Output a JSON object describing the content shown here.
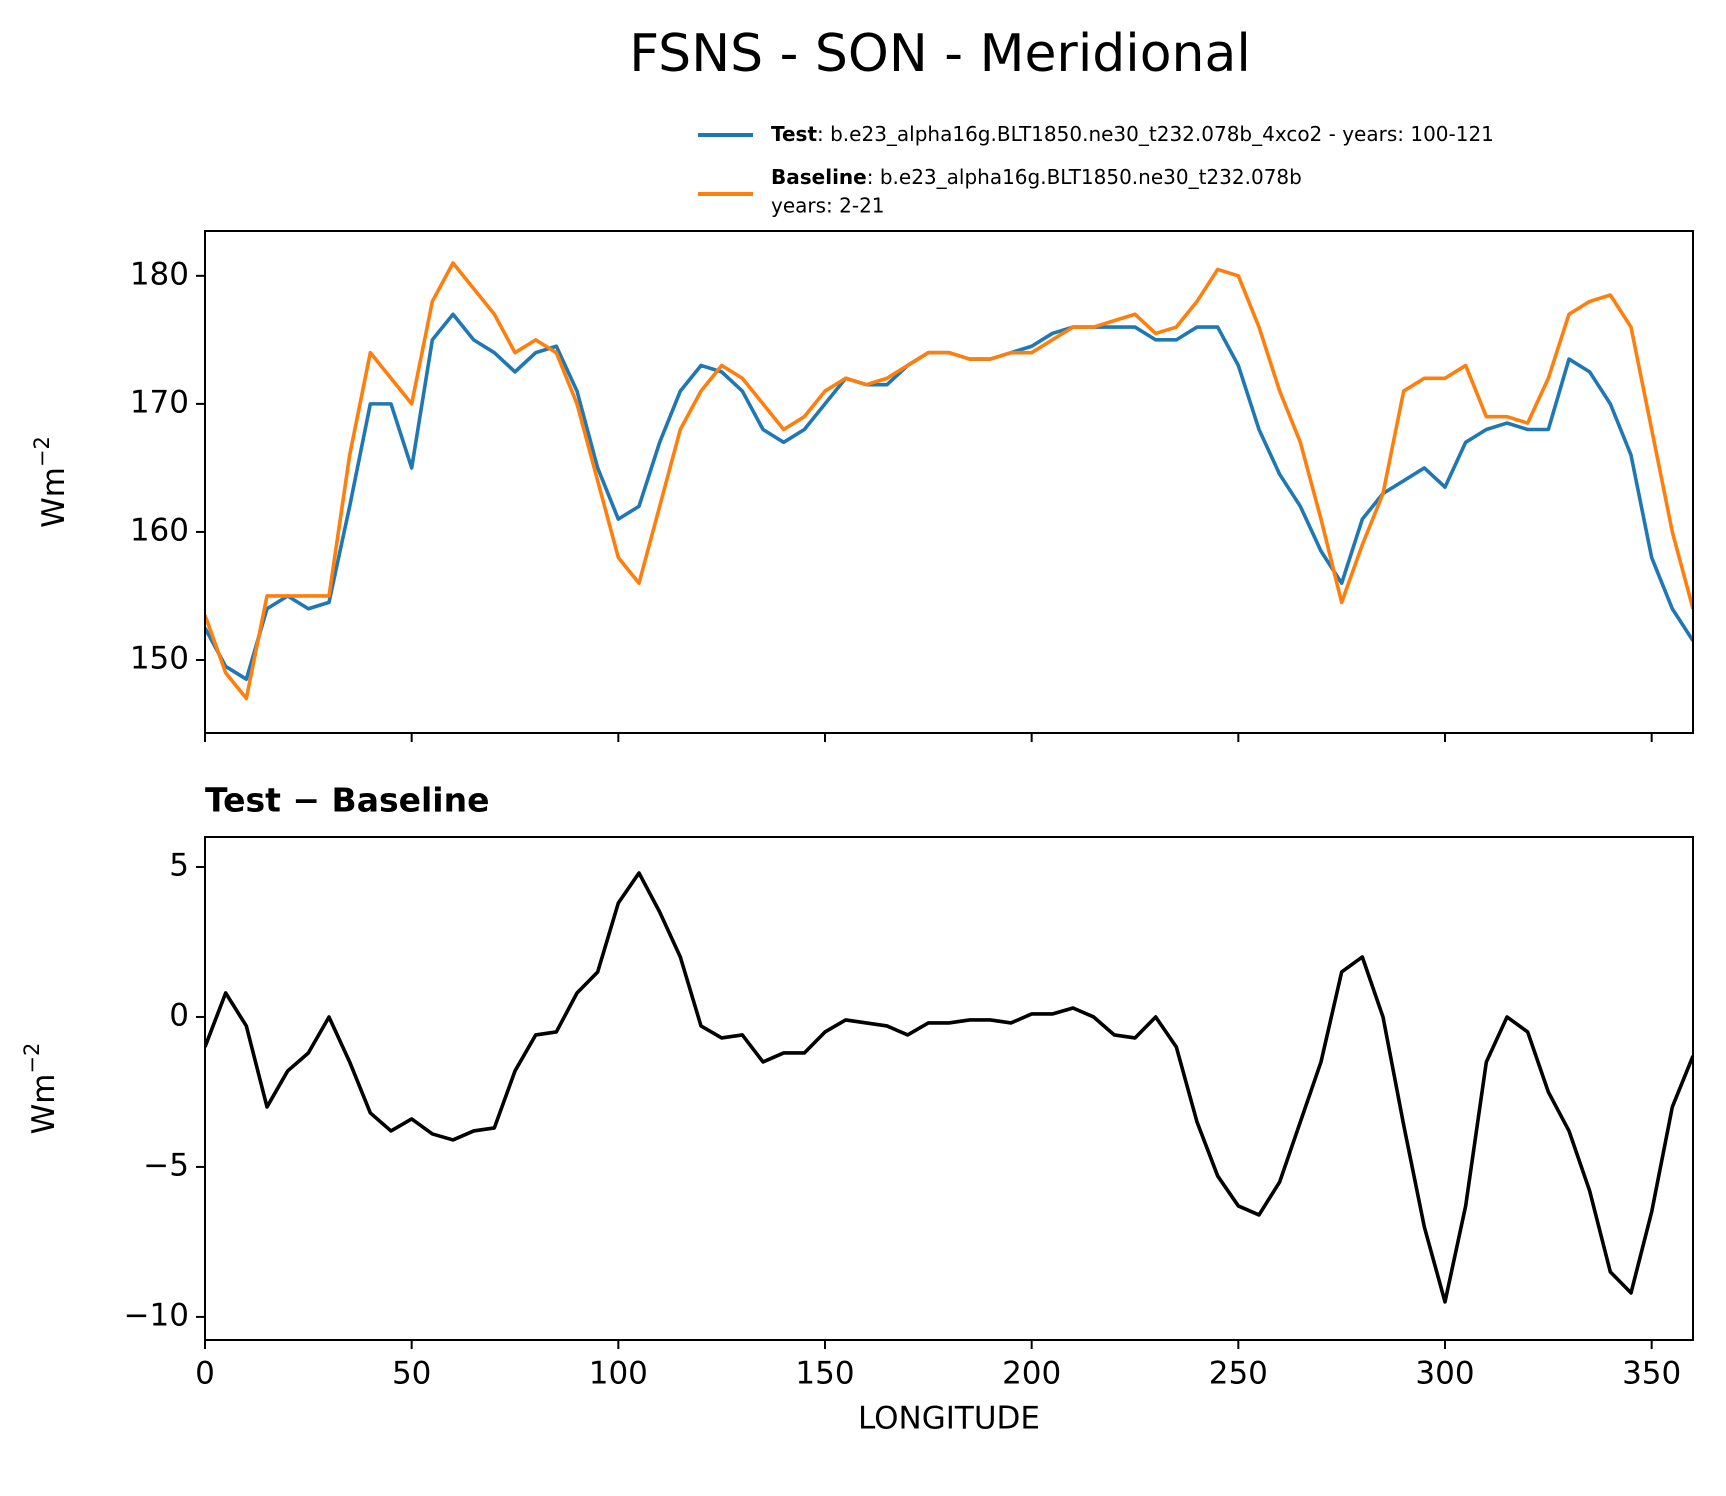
{
  "chart_data": [
    {
      "type": "line",
      "title": "FSNS - SON - Meridional",
      "ylabel": "Wm",
      "ylabel_exponent": "−2",
      "x": [
        0,
        5,
        10,
        15,
        20,
        25,
        30,
        35,
        40,
        45,
        50,
        55,
        60,
        65,
        70,
        75,
        80,
        85,
        90,
        95,
        100,
        105,
        110,
        115,
        120,
        125,
        130,
        135,
        140,
        145,
        150,
        155,
        160,
        165,
        170,
        175,
        180,
        185,
        190,
        195,
        200,
        205,
        210,
        215,
        220,
        225,
        230,
        235,
        240,
        245,
        250,
        255,
        260,
        265,
        270,
        275,
        280,
        285,
        290,
        295,
        300,
        305,
        310,
        315,
        320,
        325,
        330,
        335,
        340,
        345,
        350,
        355,
        360
      ],
      "series": [
        {
          "name": "Test",
          "description": ": b.e23_alpha16g.BLT1850.ne30_t232.078b_4xco2 - years: 100-121",
          "color": "#1f77b4",
          "values": [
            152.5,
            149.5,
            148.5,
            154,
            155,
            154,
            154.5,
            162,
            170,
            170,
            165,
            175,
            177,
            175,
            174,
            172.5,
            174,
            174.5,
            171,
            165,
            161,
            162,
            167,
            171,
            173,
            172.5,
            171,
            168,
            167,
            168,
            170,
            172,
            171.5,
            171.5,
            173,
            174,
            174,
            173.5,
            173.5,
            174,
            174.5,
            175.5,
            176,
            176,
            176,
            176,
            175,
            175,
            176,
            176,
            173,
            168,
            164.5,
            162,
            158.5,
            156,
            161,
            163,
            164,
            165,
            163.5,
            167,
            168,
            168.5,
            168,
            168,
            173.5,
            172.5,
            170,
            166,
            158,
            154,
            151.5
          ]
        },
        {
          "name": "Baseline",
          "description": ": b.e23_alpha16g.BLT1850.ne30_t232.078b",
          "description_line2": "years: 2-21",
          "color": "#ff7f0e",
          "values": [
            153.5,
            149,
            147,
            155,
            155,
            155,
            155,
            166,
            174,
            172,
            170,
            178,
            181,
            179,
            177,
            174,
            175,
            174,
            170,
            164,
            158,
            156,
            162,
            168,
            171,
            173,
            172,
            170,
            168,
            169,
            171,
            172,
            171.5,
            172,
            173,
            174,
            174,
            173.5,
            173.5,
            174,
            174,
            175,
            176,
            176,
            176.5,
            177,
            175.5,
            176,
            178,
            180.5,
            180,
            176,
            171,
            167,
            161,
            154.5,
            159,
            163,
            171,
            172,
            172,
            173,
            169,
            169,
            168.5,
            172,
            177,
            178,
            178.5,
            176,
            168,
            160,
            154
          ]
        }
      ],
      "xlim": [
        0,
        360
      ],
      "xticks": [
        0,
        50,
        100,
        150,
        200,
        250,
        300,
        350
      ],
      "ylim": [
        144.3,
        183.5
      ],
      "yticks": [
        150,
        160,
        170,
        180
      ]
    },
    {
      "type": "line",
      "title": "Test − Baseline",
      "ylabel": "Wm",
      "ylabel_exponent": "−2",
      "xlabel": "LONGITUDE",
      "color": "#000000",
      "x": [
        0,
        5,
        10,
        15,
        20,
        25,
        30,
        35,
        40,
        45,
        50,
        55,
        60,
        65,
        70,
        75,
        80,
        85,
        90,
        95,
        100,
        105,
        110,
        115,
        120,
        125,
        130,
        135,
        140,
        145,
        150,
        155,
        160,
        165,
        170,
        175,
        180,
        185,
        190,
        195,
        200,
        205,
        210,
        215,
        220,
        225,
        230,
        235,
        240,
        245,
        250,
        255,
        260,
        265,
        270,
        275,
        280,
        285,
        290,
        295,
        300,
        305,
        310,
        315,
        320,
        325,
        330,
        335,
        340,
        345,
        350,
        355,
        360
      ],
      "values": [
        -1,
        0.8,
        -0.3,
        -3,
        -1.8,
        -1.2,
        0,
        -1.5,
        -3.2,
        -3.8,
        -3.4,
        -3.9,
        -4.1,
        -3.8,
        -3.7,
        -1.8,
        -0.6,
        -0.5,
        0.8,
        1.5,
        3.8,
        4.8,
        3.5,
        2,
        -0.3,
        -0.7,
        -0.6,
        -1.5,
        -1.2,
        -1.2,
        -0.5,
        -0.1,
        -0.2,
        -0.3,
        -0.6,
        -0.2,
        -0.2,
        -0.1,
        -0.1,
        -0.2,
        0.1,
        0.1,
        0.3,
        0,
        -0.6,
        -0.7,
        0,
        -1,
        -3.5,
        -5.3,
        -6.3,
        -6.6,
        -5.5,
        -3.5,
        -1.5,
        1.5,
        2,
        0,
        -3.6,
        -7,
        -9.5,
        -6.3,
        -1.5,
        0,
        -0.5,
        -2.5,
        -3.8,
        -5.8,
        -8.5,
        -9.2,
        -6.5,
        -3,
        -1.3
      ],
      "xlim": [
        0,
        360
      ],
      "xticks": [
        0,
        50,
        100,
        150,
        200,
        250,
        300,
        350
      ],
      "ylim": [
        -10.77,
        6.0
      ],
      "yticks": [
        {
          "value": -10,
          "label": "−10"
        },
        {
          "value": -5,
          "label": "−5"
        },
        0,
        5
      ]
    }
  ]
}
